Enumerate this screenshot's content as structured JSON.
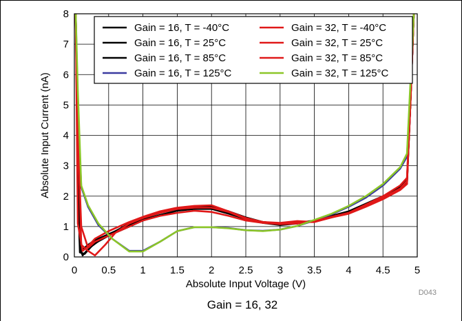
{
  "caption": "Gain = 16, 32",
  "figure_code": "D043",
  "colors": {
    "black": "#000000",
    "red": "#e01818",
    "navy": "#3a3aa0",
    "green": "#8cc628",
    "grid": "#000000"
  },
  "chart_data": {
    "type": "line",
    "xlabel": "Absolute Input Voltage (V)",
    "ylabel": "Absolute Input Current (nA)",
    "xlim": [
      0,
      5
    ],
    "ylim": [
      0,
      8
    ],
    "xticks": [
      0,
      0.5,
      1,
      1.5,
      2,
      2.5,
      3,
      3.5,
      4,
      4.5,
      5
    ],
    "xtick_labels": [
      "0",
      "0.5",
      "1",
      "1.5",
      "2",
      "2.5",
      "3",
      "3.5",
      "4",
      "4.5",
      "5"
    ],
    "yticks": [
      0,
      1,
      2,
      3,
      4,
      5,
      6,
      7,
      8
    ],
    "ytick_labels": [
      "0",
      "1",
      "2",
      "3",
      "4",
      "5",
      "6",
      "7",
      "8"
    ],
    "grid": true,
    "legend_position": "top-right",
    "series": [
      {
        "name": "Gain = 16, T = -40°C",
        "color": "#000000",
        "x": [
          0.02,
          0.05,
          0.1,
          0.2,
          0.3,
          0.5,
          0.8,
          1,
          1.25,
          1.5,
          1.75,
          2,
          2.25,
          2.5,
          2.75,
          3,
          3.25,
          3.5,
          3.75,
          4,
          4.25,
          4.5,
          4.75,
          4.85,
          4.9,
          4.95
        ],
        "y": [
          8,
          4,
          0.2,
          0.4,
          0.55,
          0.75,
          1.05,
          1.25,
          1.45,
          1.58,
          1.62,
          1.6,
          1.45,
          1.25,
          1.15,
          1.1,
          1.12,
          1.2,
          1.35,
          1.5,
          1.75,
          2,
          2.25,
          2.4,
          5,
          8
        ]
      },
      {
        "name": "Gain = 16, T = 25°C",
        "color": "#000000",
        "x": [
          0.02,
          0.05,
          0.08,
          0.12,
          0.2,
          0.3,
          0.5,
          0.8,
          1,
          1.25,
          1.5,
          1.75,
          2,
          2.25,
          2.5,
          2.75,
          3,
          3.25,
          3.5,
          3.75,
          4,
          4.25,
          4.5,
          4.75,
          4.85,
          4.9,
          4.95
        ],
        "y": [
          8,
          3,
          0.3,
          0.05,
          0.25,
          0.45,
          0.7,
          1,
          1.2,
          1.38,
          1.52,
          1.58,
          1.58,
          1.42,
          1.25,
          1.12,
          1.05,
          1.1,
          1.18,
          1.3,
          1.45,
          1.7,
          1.95,
          2.25,
          2.45,
          5,
          8
        ]
      },
      {
        "name": "Gain = 16, T = 85°C",
        "color": "#000000",
        "x": [
          0.02,
          0.05,
          0.08,
          0.15,
          0.25,
          0.4,
          0.6,
          0.8,
          1,
          1.25,
          1.5,
          1.75,
          2,
          2.25,
          2.5,
          2.75,
          3,
          3.25,
          3.5,
          3.75,
          4,
          4.25,
          4.5,
          4.75,
          4.85,
          4.9,
          4.95
        ],
        "y": [
          8,
          2.5,
          0.15,
          0.1,
          0.35,
          0.6,
          0.85,
          1.1,
          1.3,
          1.45,
          1.6,
          1.65,
          1.65,
          1.5,
          1.3,
          1.15,
          1.08,
          1.1,
          1.2,
          1.32,
          1.48,
          1.72,
          1.98,
          2.3,
          2.55,
          5,
          8
        ]
      },
      {
        "name": "Gain = 16, T = 125°C",
        "color": "#3a3aa0",
        "x": [
          0.02,
          0.05,
          0.1,
          0.2,
          0.35,
          0.55,
          0.8,
          1,
          1.25,
          1.5,
          1.75,
          2,
          2.25,
          2.5,
          2.75,
          3,
          3.25,
          3.5,
          3.75,
          4,
          4.25,
          4.5,
          4.75,
          4.85,
          4.9,
          4.95
        ],
        "y": [
          8,
          5,
          2.3,
          1.65,
          1.05,
          0.6,
          0.2,
          0.2,
          0.5,
          0.85,
          0.98,
          0.98,
          0.95,
          0.88,
          0.86,
          0.9,
          1.02,
          1.2,
          1.4,
          1.65,
          1.95,
          2.35,
          2.9,
          3.3,
          5.5,
          8
        ]
      },
      {
        "name": "Gain = 32, T = -40°C",
        "color": "#e01818",
        "x": [
          0.02,
          0.05,
          0.1,
          0.2,
          0.3,
          0.5,
          0.8,
          1,
          1.25,
          1.5,
          1.75,
          2,
          2.25,
          2.5,
          2.75,
          3,
          3.25,
          3.5,
          3.75,
          4,
          4.25,
          4.5,
          4.75,
          4.85,
          4.9,
          4.95
        ],
        "y": [
          8,
          4,
          1.0,
          0.3,
          0.5,
          0.7,
          1.0,
          1.2,
          1.35,
          1.45,
          1.52,
          1.48,
          1.35,
          1.2,
          1.12,
          1.08,
          1.1,
          1.18,
          1.32,
          1.45,
          1.7,
          1.95,
          2.25,
          2.5,
          5,
          8
        ]
      },
      {
        "name": "Gain = 32, T = 25°C",
        "color": "#e01818",
        "x": [
          0.02,
          0.05,
          0.12,
          0.2,
          0.3,
          0.5,
          0.8,
          1,
          1.25,
          1.5,
          1.75,
          2,
          2.25,
          2.5,
          2.75,
          3,
          3.25,
          3.5,
          3.75,
          4,
          4.25,
          4.5,
          4.75,
          4.85,
          4.9,
          4.95
        ],
        "y": [
          8,
          1.1,
          0.2,
          0.35,
          0.6,
          0.85,
          1.15,
          1.32,
          1.5,
          1.62,
          1.68,
          1.7,
          1.5,
          1.28,
          1.15,
          1.1,
          1.15,
          1.15,
          1.3,
          1.42,
          1.65,
          1.9,
          2.2,
          2.4,
          5,
          8
        ]
      },
      {
        "name": "Gain = 32, T = 85°C",
        "color": "#e01818",
        "x": [
          0.02,
          0.05,
          0.1,
          0.2,
          0.3,
          0.45,
          0.6,
          0.8,
          1,
          1.25,
          1.5,
          1.75,
          2,
          2.25,
          2.5,
          2.75,
          3,
          3.25,
          3.5,
          3.75,
          4,
          4.25,
          4.5,
          4.75,
          4.85,
          4.9,
          4.95
        ],
        "y": [
          8,
          4.5,
          0.4,
          0.2,
          0.05,
          0.4,
          0.8,
          1.1,
          1.28,
          1.45,
          1.58,
          1.62,
          1.62,
          1.48,
          1.25,
          1.15,
          1.12,
          1.18,
          1.15,
          1.3,
          1.45,
          1.72,
          2.0,
          2.35,
          2.6,
          5.2,
          8
        ]
      },
      {
        "name": "Gain = 32, T = 125°C",
        "color": "#8cc628",
        "x": [
          0.02,
          0.05,
          0.1,
          0.2,
          0.35,
          0.55,
          0.8,
          1,
          1.25,
          1.5,
          1.75,
          2,
          2.25,
          2.5,
          2.75,
          3,
          3.25,
          3.5,
          3.75,
          4,
          4.25,
          4.5,
          4.75,
          4.85,
          4.9,
          4.95
        ],
        "y": [
          8,
          5.5,
          2.35,
          1.7,
          1.1,
          0.6,
          0.18,
          0.18,
          0.5,
          0.85,
          0.98,
          0.98,
          0.94,
          0.88,
          0.85,
          0.9,
          1.02,
          1.22,
          1.42,
          1.68,
          2.0,
          2.4,
          2.95,
          3.4,
          5.7,
          8
        ]
      }
    ]
  }
}
